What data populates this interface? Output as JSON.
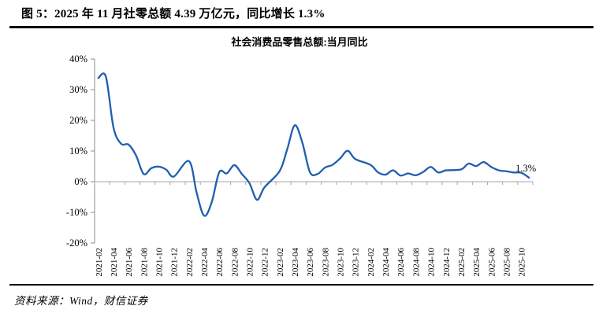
{
  "figure": {
    "title": "图 5：2025 年 11 月社零总额 4.39 万亿元，同比增长 1.3%"
  },
  "chart_data": {
    "type": "line",
    "title": "社会消费品零售总额:当月同比",
    "ylabel": "",
    "xlabel": "",
    "ylim": [
      -20,
      40
    ],
    "y_tick_labels": [
      "40%",
      "30%",
      "20%",
      "10%",
      "0%",
      "-10%",
      "-20%"
    ],
    "y_tick_values": [
      40,
      30,
      20,
      10,
      0,
      -10,
      -20
    ],
    "x_tick_labels": [
      "2021-02",
      "2021-04",
      "2021-06",
      "2021-08",
      "2021-10",
      "2021-12",
      "2022-02",
      "2022-04",
      "2022-06",
      "2022-08",
      "2022-10",
      "2022-12",
      "2023-02",
      "2023-04",
      "2023-06",
      "2023-08",
      "2023-10",
      "2023-12",
      "2024-02",
      "2024-04",
      "2024-06",
      "2024-08",
      "2024-10",
      "2024-12",
      "2025-02",
      "2025-04",
      "2025-06",
      "2025-08",
      "2025-10"
    ],
    "x_start_month": "2021-02",
    "x_end_month": "2025-11",
    "grid": "off",
    "legend": "none",
    "line_color": "#1F5FAE",
    "axis_color": "#A6A6A6",
    "yaxis_color": "#8C8C8C",
    "annotation": {
      "text": "1.3%",
      "month": "2025-11",
      "value": 1.3
    },
    "series": [
      {
        "name": "社会消费品零售总额:当月同比",
        "months": [
          "2021-02",
          "2021-03",
          "2021-04",
          "2021-05",
          "2021-06",
          "2021-07",
          "2021-08",
          "2021-09",
          "2021-10",
          "2021-11",
          "2021-12",
          "2022-02",
          "2022-03",
          "2022-04",
          "2022-05",
          "2022-06",
          "2022-07",
          "2022-08",
          "2022-09",
          "2022-10",
          "2022-11",
          "2022-12",
          "2023-02",
          "2023-03",
          "2023-04",
          "2023-05",
          "2023-06",
          "2023-07",
          "2023-08",
          "2023-09",
          "2023-10",
          "2023-11",
          "2023-12",
          "2024-02",
          "2024-03",
          "2024-04",
          "2024-05",
          "2024-06",
          "2024-07",
          "2024-08",
          "2024-09",
          "2024-10",
          "2024-11",
          "2024-12",
          "2025-02",
          "2025-03",
          "2025-04",
          "2025-05",
          "2025-06",
          "2025-07",
          "2025-08",
          "2025-09",
          "2025-10",
          "2025-11"
        ],
        "values": [
          33.8,
          34.2,
          17.7,
          12.4,
          12.1,
          8.5,
          2.5,
          4.4,
          4.9,
          3.9,
          1.7,
          6.7,
          -3.5,
          -11.1,
          -6.7,
          3.1,
          2.7,
          5.4,
          2.5,
          -0.5,
          -5.9,
          -1.8,
          3.5,
          10.6,
          18.4,
          12.7,
          3.1,
          2.5,
          4.6,
          5.5,
          7.6,
          10.1,
          7.4,
          5.5,
          3.1,
          2.3,
          3.7,
          2.0,
          2.7,
          2.1,
          3.2,
          4.8,
          3.0,
          3.7,
          4.0,
          5.9,
          5.1,
          6.4,
          4.8,
          3.7,
          3.4,
          3.0,
          2.9,
          1.3
        ]
      }
    ]
  },
  "footer": {
    "source": "资料来源：Wind，财信证券"
  }
}
